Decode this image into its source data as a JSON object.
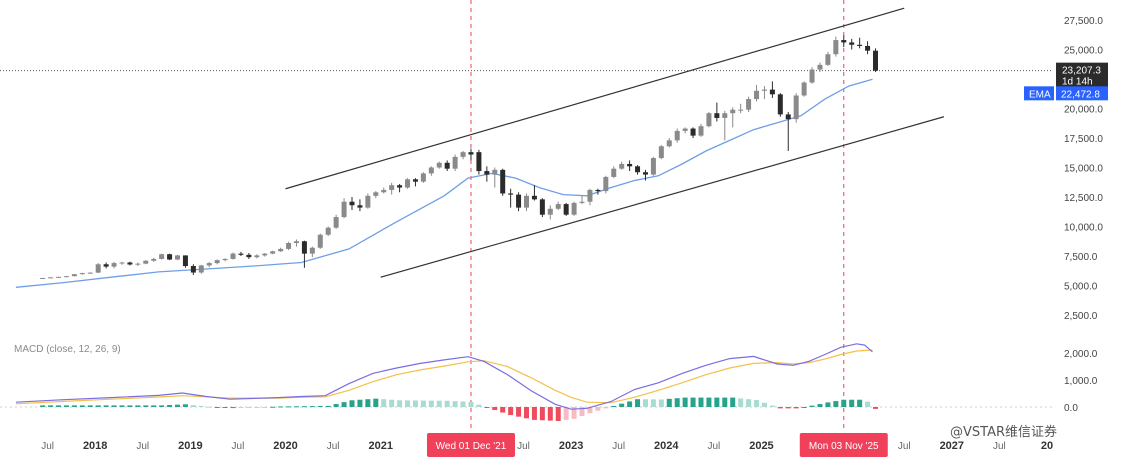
{
  "chart_data": {
    "type": "candlestick",
    "price_axis": {
      "ticks": [
        2500,
        5000,
        7500,
        10000,
        12500,
        15000,
        17500,
        20000,
        25000,
        27500
      ],
      "tick_labels": [
        "2,500.0",
        "5,000.0",
        "7,500.0",
        "10,000.0",
        "12,500.0",
        "15,000.0",
        "17,500.0",
        "20,000.0",
        "25,000.0",
        "27,500.0"
      ]
    },
    "time_axis": [
      {
        "label": "Jul",
        "bold": false,
        "date": "2017-07"
      },
      {
        "label": "2018",
        "bold": true,
        "date": "2018-01"
      },
      {
        "label": "Jul",
        "bold": false,
        "date": "2018-07"
      },
      {
        "label": "2019",
        "bold": true,
        "date": "2019-01"
      },
      {
        "label": "Jul",
        "bold": false,
        "date": "2019-07"
      },
      {
        "label": "2020",
        "bold": true,
        "date": "2020-01"
      },
      {
        "label": "Jul",
        "bold": false,
        "date": "2020-07"
      },
      {
        "label": "2021",
        "bold": true,
        "date": "2021-01"
      },
      {
        "label": "Jul",
        "bold": false,
        "date": "2022-07"
      },
      {
        "label": "2023",
        "bold": true,
        "date": "2023-01"
      },
      {
        "label": "Jul",
        "bold": false,
        "date": "2023-07"
      },
      {
        "label": "2024",
        "bold": true,
        "date": "2024-01"
      },
      {
        "label": "Jul",
        "bold": false,
        "date": "2024-07"
      },
      {
        "label": "2025",
        "bold": true,
        "date": "2025-01"
      },
      {
        "label": "Jul",
        "bold": false,
        "date": "2026-07"
      },
      {
        "label": "2027",
        "bold": true,
        "date": "2027-01"
      },
      {
        "label": "Jul",
        "bold": false,
        "date": "2027-07"
      },
      {
        "label": "20",
        "bold": true,
        "date": "2028-01"
      }
    ],
    "candles": [
      [
        "2017-06",
        5600,
        5650,
        5580,
        5640
      ],
      [
        "2017-07",
        5640,
        5700,
        5620,
        5690
      ],
      [
        "2017-08",
        5690,
        5760,
        5660,
        5730
      ],
      [
        "2017-09",
        5730,
        5800,
        5700,
        5790
      ],
      [
        "2017-10",
        5790,
        5980,
        5770,
        5960
      ],
      [
        "2017-11",
        5960,
        6080,
        5920,
        6050
      ],
      [
        "2017-12",
        6050,
        6120,
        5990,
        6090
      ],
      [
        "2018-01",
        6090,
        6900,
        6050,
        6800
      ],
      [
        "2018-02",
        6800,
        6950,
        6450,
        6600
      ],
      [
        "2018-03",
        6600,
        7000,
        6450,
        6900
      ],
      [
        "2018-04",
        6900,
        7000,
        6750,
        6950
      ],
      [
        "2018-05",
        6950,
        7020,
        6700,
        6780
      ],
      [
        "2018-06",
        6780,
        6950,
        6650,
        6850
      ],
      [
        "2018-07",
        6850,
        7150,
        6800,
        7100
      ],
      [
        "2018-08",
        7100,
        7350,
        7000,
        7250
      ],
      [
        "2018-09",
        7250,
        7700,
        7200,
        7650
      ],
      [
        "2018-10",
        7650,
        7700,
        7150,
        7200
      ],
      [
        "2018-11",
        7200,
        7600,
        7150,
        7550
      ],
      [
        "2018-12",
        7550,
        7560,
        6500,
        6650
      ],
      [
        "2019-01",
        6650,
        6800,
        5900,
        6100
      ],
      [
        "2019-02",
        6100,
        6750,
        6000,
        6700
      ],
      [
        "2019-03",
        6700,
        7000,
        6550,
        6900
      ],
      [
        "2019-04",
        6900,
        7200,
        6800,
        7150
      ],
      [
        "2019-05",
        7150,
        7300,
        7050,
        7250
      ],
      [
        "2019-06",
        7250,
        7800,
        7200,
        7700
      ],
      [
        "2019-07",
        7700,
        7850,
        7500,
        7600
      ],
      [
        "2019-08",
        7600,
        7750,
        7250,
        7400
      ],
      [
        "2019-09",
        7400,
        7650,
        7300,
        7550
      ],
      [
        "2019-10",
        7550,
        7750,
        7450,
        7700
      ],
      [
        "2019-11",
        7700,
        7950,
        7650,
        7900
      ],
      [
        "2019-12",
        7900,
        8200,
        7850,
        8100
      ],
      [
        "2020-01",
        8100,
        8700,
        8000,
        8600
      ],
      [
        "2020-02",
        8600,
        8900,
        8300,
        8750
      ],
      [
        "2020-03",
        8750,
        8800,
        6500,
        7700
      ],
      [
        "2020-04",
        7700,
        8300,
        7400,
        8200
      ],
      [
        "2020-05",
        8200,
        9400,
        8100,
        9300
      ],
      [
        "2020-06",
        9300,
        10000,
        9200,
        9900
      ],
      [
        "2020-07",
        9900,
        11000,
        9800,
        10800
      ],
      [
        "2020-08",
        10800,
        12400,
        10700,
        12100
      ],
      [
        "2020-09",
        12100,
        12500,
        11400,
        11800
      ],
      [
        "2020-10",
        11800,
        12300,
        11300,
        11600
      ],
      [
        "2020-11",
        11600,
        12800,
        11500,
        12600
      ],
      [
        "2020-12",
        12600,
        13000,
        12400,
        12900
      ],
      [
        "2021-01",
        12900,
        13300,
        12800,
        13100
      ],
      [
        "2021-02",
        13100,
        13700,
        12700,
        13500
      ],
      [
        "2021-03",
        13500,
        13600,
        12900,
        13300
      ],
      [
        "2021-04",
        13300,
        14100,
        13200,
        14000
      ],
      [
        "2021-05",
        14000,
        14100,
        13400,
        13800
      ],
      [
        "2021-06",
        13800,
        14600,
        13700,
        14500
      ],
      [
        "2021-07",
        14500,
        15100,
        14300,
        15000
      ],
      [
        "2021-08",
        15000,
        15500,
        14900,
        15400
      ],
      [
        "2021-09",
        15400,
        15600,
        14700,
        14900
      ],
      [
        "2021-10",
        14900,
        16100,
        14700,
        15900
      ],
      [
        "2021-11",
        15900,
        16400,
        15700,
        16300
      ],
      [
        "2021-12",
        16300,
        16600,
        15600,
        16100
      ],
      [
        "2022-01",
        16300,
        16500,
        14400,
        14700
      ],
      [
        "2022-02",
        14700,
        15100,
        13800,
        14400
      ],
      [
        "2022-03",
        14400,
        15000,
        13300,
        14800
      ],
      [
        "2022-04",
        14800,
        14900,
        12600,
        12800
      ],
      [
        "2022-05",
        12800,
        13200,
        11600,
        12700
      ],
      [
        "2022-06",
        12700,
        12900,
        11300,
        11600
      ],
      [
        "2022-07",
        11600,
        12800,
        11300,
        12600
      ],
      [
        "2022-08",
        12600,
        13500,
        12200,
        12300
      ],
      [
        "2022-09",
        12300,
        12400,
        10800,
        11000
      ],
      [
        "2022-10",
        11000,
        11800,
        10600,
        11500
      ],
      [
        "2022-11",
        11500,
        12100,
        11400,
        11900
      ],
      [
        "2022-12",
        11900,
        12000,
        10900,
        11000
      ],
      [
        "2023-01",
        11000,
        12100,
        10900,
        12000
      ],
      [
        "2023-02",
        12000,
        12600,
        11900,
        12100
      ],
      [
        "2023-03",
        12100,
        13200,
        11800,
        13100
      ],
      [
        "2023-04",
        13100,
        13200,
        12700,
        13000
      ],
      [
        "2023-05",
        13000,
        14300,
        12800,
        14200
      ],
      [
        "2023-06",
        14200,
        15100,
        14100,
        14900
      ],
      [
        "2023-07",
        14900,
        15500,
        14800,
        15300
      ],
      [
        "2023-08",
        15300,
        15600,
        14700,
        15100
      ],
      [
        "2023-09",
        15100,
        15200,
        14400,
        14600
      ],
      [
        "2023-10",
        14600,
        14800,
        13900,
        14400
      ],
      [
        "2023-11",
        14400,
        15900,
        14300,
        15800
      ],
      [
        "2023-12",
        15800,
        16900,
        15700,
        16800
      ],
      [
        "2024-01",
        16800,
        17500,
        16700,
        17300
      ],
      [
        "2024-02",
        17300,
        18300,
        17100,
        18100
      ],
      [
        "2024-03",
        18100,
        18400,
        17900,
        18300
      ],
      [
        "2024-04",
        18300,
        18400,
        17500,
        17700
      ],
      [
        "2024-05",
        17700,
        18700,
        17600,
        18500
      ],
      [
        "2024-06",
        18500,
        19700,
        18400,
        19600
      ],
      [
        "2024-07",
        19600,
        20500,
        18900,
        19200
      ],
      [
        "2024-08",
        19200,
        19800,
        17300,
        19600
      ],
      [
        "2024-09",
        19600,
        20100,
        18400,
        19900
      ],
      [
        "2024-10",
        19900,
        20400,
        19600,
        19900
      ],
      [
        "2024-11",
        19900,
        21000,
        19700,
        20800
      ],
      [
        "2024-12",
        20800,
        22000,
        20600,
        21500
      ],
      [
        "2025-01",
        21500,
        21900,
        20800,
        21600
      ],
      [
        "2025-02",
        21600,
        22300,
        20900,
        21200
      ],
      [
        "2025-03",
        21200,
        21300,
        19300,
        19500
      ],
      [
        "2025-04",
        19500,
        19700,
        16400,
        19100
      ],
      [
        "2025-05",
        19100,
        21300,
        18800,
        21100
      ],
      [
        "2025-06",
        21100,
        22300,
        21000,
        22200
      ],
      [
        "2025-07",
        22200,
        23500,
        22100,
        23300
      ],
      [
        "2025-08",
        23300,
        23900,
        23100,
        23700
      ],
      [
        "2025-09",
        23700,
        24800,
        23600,
        24600
      ],
      [
        "2025-10",
        24600,
        26100,
        24400,
        25800
      ],
      [
        "2025-11",
        25800,
        26200,
        25200,
        25600
      ],
      [
        "2025-12",
        25600,
        25900,
        25000,
        25400
      ],
      [
        "2026-01",
        25400,
        26000,
        25100,
        25300
      ],
      [
        "2026-02",
        25300,
        25700,
        24600,
        24900
      ],
      [
        "2026-03",
        24900,
        25100,
        23100,
        23207
      ]
    ],
    "ema": [
      [
        "2017-03",
        4850
      ],
      [
        "2017-09",
        5250
      ],
      [
        "2018-03",
        5700
      ],
      [
        "2018-09",
        6150
      ],
      [
        "2019-03",
        6400
      ],
      [
        "2019-09",
        6650
      ],
      [
        "2020-03",
        6950
      ],
      [
        "2020-09",
        8100
      ],
      [
        "2021-03",
        10400
      ],
      [
        "2021-09",
        12600
      ],
      [
        "2021-12",
        14100
      ],
      [
        "2022-03",
        14500
      ],
      [
        "2022-06",
        14100
      ],
      [
        "2022-09",
        13300
      ],
      [
        "2022-12",
        12700
      ],
      [
        "2023-03",
        12600
      ],
      [
        "2023-06",
        13300
      ],
      [
        "2023-09",
        13900
      ],
      [
        "2023-12",
        14300
      ],
      [
        "2024-03",
        15300
      ],
      [
        "2024-06",
        16400
      ],
      [
        "2024-09",
        17300
      ],
      [
        "2024-12",
        18200
      ],
      [
        "2025-03",
        18800
      ],
      [
        "2025-06",
        19400
      ],
      [
        "2025-09",
        20800
      ],
      [
        "2025-12",
        21900
      ],
      [
        "2026-03",
        22472.8
      ]
    ],
    "channel_upper": [
      [
        "2020-01",
        13200
      ],
      [
        "2026-07",
        28500
      ]
    ],
    "channel_lower": [
      [
        "2021-01",
        5700
      ],
      [
        "2026-12",
        19300
      ]
    ],
    "last_price": {
      "value": 23207.3,
      "label": "23,207.3",
      "countdown": "1d 14h"
    },
    "ema_label": {
      "name": "EMA",
      "value": "22,472.8"
    },
    "markers": [
      {
        "date": "2021-12",
        "label": "Wed 01 Dec '21"
      },
      {
        "date": "2025-11",
        "label": "Mon 03 Nov '25"
      }
    ],
    "macd": {
      "title": "MACD (close, 12, 26, 9)",
      "ticks": [
        0,
        1000,
        2000
      ],
      "tick_labels": [
        "0.0",
        "1,000.0",
        "2,000.0"
      ],
      "macd_line": [
        [
          "2017-03",
          180
        ],
        [
          "2017-09",
          270
        ],
        [
          "2018-03",
          350
        ],
        [
          "2018-09",
          430
        ],
        [
          "2018-12",
          520
        ],
        [
          "2019-03",
          390
        ],
        [
          "2019-06",
          290
        ],
        [
          "2019-12",
          350
        ],
        [
          "2020-03",
          390
        ],
        [
          "2020-06",
          420
        ],
        [
          "2020-09",
          870
        ],
        [
          "2020-12",
          1250
        ],
        [
          "2021-03",
          1450
        ],
        [
          "2021-06",
          1620
        ],
        [
          "2021-09",
          1750
        ],
        [
          "2021-12",
          1870
        ],
        [
          "2022-02",
          1700
        ],
        [
          "2022-05",
          1200
        ],
        [
          "2022-08",
          600
        ],
        [
          "2022-11",
          100
        ],
        [
          "2023-01",
          -80
        ],
        [
          "2023-03",
          -50
        ],
        [
          "2023-06",
          200
        ],
        [
          "2023-09",
          650
        ],
        [
          "2023-12",
          900
        ],
        [
          "2024-03",
          1250
        ],
        [
          "2024-06",
          1550
        ],
        [
          "2024-09",
          1800
        ],
        [
          "2024-12",
          1880
        ],
        [
          "2025-03",
          1600
        ],
        [
          "2025-05",
          1550
        ],
        [
          "2025-07",
          1700
        ],
        [
          "2025-09",
          1950
        ],
        [
          "2025-11",
          2220
        ],
        [
          "2026-01",
          2350
        ],
        [
          "2026-02",
          2300
        ],
        [
          "2026-03",
          2050
        ]
      ],
      "signal_line": [
        [
          "2017-03",
          120
        ],
        [
          "2017-09",
          210
        ],
        [
          "2018-03",
          290
        ],
        [
          "2018-09",
          370
        ],
        [
          "2018-12",
          420
        ],
        [
          "2019-03",
          380
        ],
        [
          "2019-06",
          330
        ],
        [
          "2019-12",
          330
        ],
        [
          "2020-03",
          360
        ],
        [
          "2020-06",
          380
        ],
        [
          "2020-09",
          620
        ],
        [
          "2020-12",
          940
        ],
        [
          "2021-03",
          1200
        ],
        [
          "2021-06",
          1380
        ],
        [
          "2021-09",
          1520
        ],
        [
          "2021-12",
          1680
        ],
        [
          "2022-02",
          1720
        ],
        [
          "2022-05",
          1500
        ],
        [
          "2022-08",
          1080
        ],
        [
          "2022-11",
          620
        ],
        [
          "2023-01",
          360
        ],
        [
          "2023-03",
          180
        ],
        [
          "2023-06",
          160
        ],
        [
          "2023-09",
          360
        ],
        [
          "2023-12",
          620
        ],
        [
          "2024-03",
          900
        ],
        [
          "2024-06",
          1200
        ],
        [
          "2024-09",
          1450
        ],
        [
          "2024-12",
          1620
        ],
        [
          "2025-03",
          1650
        ],
        [
          "2025-05",
          1600
        ],
        [
          "2025-07",
          1650
        ],
        [
          "2025-09",
          1780
        ],
        [
          "2025-11",
          1950
        ],
        [
          "2026-01",
          2080
        ],
        [
          "2026-03",
          2120
        ]
      ]
    }
  },
  "watermark": "@VSTAR维信证券",
  "colors": {
    "candle_up": "#8a8a8a",
    "candle_down": "#2b2b2b",
    "ema": "#6f9fe6",
    "macd": "#7b6de0",
    "signal": "#f4c04a",
    "hist_pos": "#26a38a",
    "hist_pos_fade": "#a8dcd1",
    "hist_neg": "#ef4b5d",
    "hist_neg_fade": "#f7bcc3",
    "marker": "#f0405a",
    "ema_badge": "#2962ff"
  }
}
